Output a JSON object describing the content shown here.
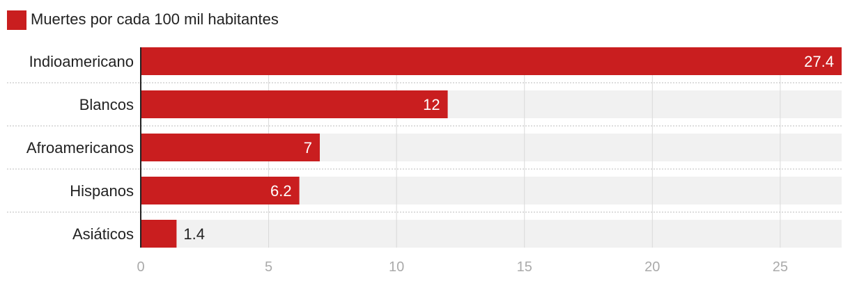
{
  "chart_data": {
    "type": "bar",
    "orientation": "horizontal",
    "categories": [
      "Indioamericano",
      "Blancos",
      "Afroamericanos",
      "Hispanos",
      "Asiáticos"
    ],
    "series": [
      {
        "name": "Muertes por cada 100 mil habitantes",
        "values": [
          27.4,
          12,
          7,
          6.2,
          1.4
        ]
      }
    ],
    "data_labels": [
      "27.4",
      "12",
      "7",
      "6.2",
      "1.4"
    ],
    "xlim": [
      0,
      27.4
    ],
    "x_ticks": [
      0,
      5,
      10,
      15,
      20,
      25
    ],
    "x_tick_labels": [
      "0",
      "5",
      "10",
      "15",
      "20",
      "25"
    ],
    "grid": true,
    "legend_position": "top-left"
  },
  "colors": {
    "bar": "#c91e1f",
    "track": "#f1f1f1",
    "gridline": "#d9d9d9",
    "separator": "#bbbbbb",
    "axis": "#222222",
    "label_inside": "#ffffff",
    "label_outside": "#222222"
  }
}
